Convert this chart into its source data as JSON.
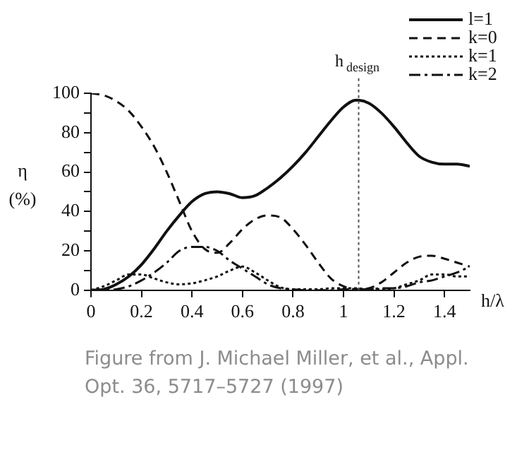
{
  "chart_data": {
    "type": "line",
    "xlabel": "h/λ",
    "ylabel": "η (%)",
    "x": [
      0,
      0.05,
      0.1,
      0.15,
      0.2,
      0.25,
      0.3,
      0.35,
      0.4,
      0.45,
      0.5,
      0.55,
      0.6,
      0.65,
      0.7,
      0.75,
      0.8,
      0.85,
      0.9,
      0.95,
      1.0,
      1.05,
      1.1,
      1.15,
      1.2,
      1.25,
      1.3,
      1.35,
      1.4,
      1.45,
      1.5
    ],
    "series": [
      {
        "name": "l=1",
        "color": "#111111",
        "line_style": "solid",
        "values": [
          0,
          0.5,
          3,
          7,
          13,
          21,
          30,
          38,
          45,
          49,
          50,
          49,
          47,
          48,
          52,
          57,
          63,
          70,
          78,
          86,
          93,
          96.5,
          95,
          90,
          83,
          75,
          68,
          65,
          64,
          64,
          63
        ]
      },
      {
        "name": "k=0",
        "color": "#111111",
        "line_style": "dashed",
        "values": [
          100,
          99,
          96,
          91,
          83,
          73,
          60,
          45,
          30,
          21,
          19,
          24,
          31,
          36,
          38,
          37,
          31,
          23,
          14,
          6,
          2,
          0.5,
          1,
          4,
          9,
          14,
          17,
          17.5,
          16,
          14,
          12
        ]
      },
      {
        "name": "k=1",
        "color": "#111111",
        "line_style": "dotted",
        "values": [
          0,
          2,
          5,
          8,
          8,
          6,
          4,
          3,
          3.5,
          5,
          7,
          10,
          12,
          9,
          5,
          1.5,
          0.5,
          0.5,
          0.5,
          1,
          1,
          1,
          0.5,
          0.5,
          1,
          3,
          5,
          8,
          8,
          7,
          7
        ]
      },
      {
        "name": "k=2",
        "color": "#111111",
        "line_style": "dashdot",
        "values": [
          0,
          0,
          0.5,
          2,
          5,
          9,
          14,
          20,
          22,
          22,
          20,
          15,
          11,
          7,
          3,
          1,
          0.5,
          0,
          0,
          0,
          0.5,
          0.5,
          0.5,
          1,
          1,
          2,
          4,
          5,
          7,
          9,
          12
        ]
      }
    ],
    "xlim": [
      0,
      1.5
    ],
    "xticks": [
      {
        "value": 0,
        "label": "0"
      },
      0.2,
      0.4,
      0.6,
      0.8,
      {
        "value": 1,
        "label": "1"
      },
      1.2,
      1.4
    ],
    "ylim": [
      0,
      100
    ],
    "yticks": [
      0,
      {
        "value": 10,
        "label": null
      },
      20,
      {
        "value": 30,
        "label": null
      },
      40,
      {
        "value": 50,
        "label": null
      },
      60,
      {
        "value": 70,
        "label": null
      },
      80,
      {
        "value": 90,
        "label": null
      },
      100
    ],
    "ref_lines": [
      {
        "axis": "x",
        "value": 1.06,
        "label": "h$_{design}$",
        "line_style": "dotted",
        "color": "#555555"
      }
    ],
    "legend": "top right",
    "grid": false,
    "marker": "none",
    "annotations": [
      "Figure from J. Michael Miller, et al., Appl. Opt. 36, 5717–5727 (1997)"
    ]
  }
}
